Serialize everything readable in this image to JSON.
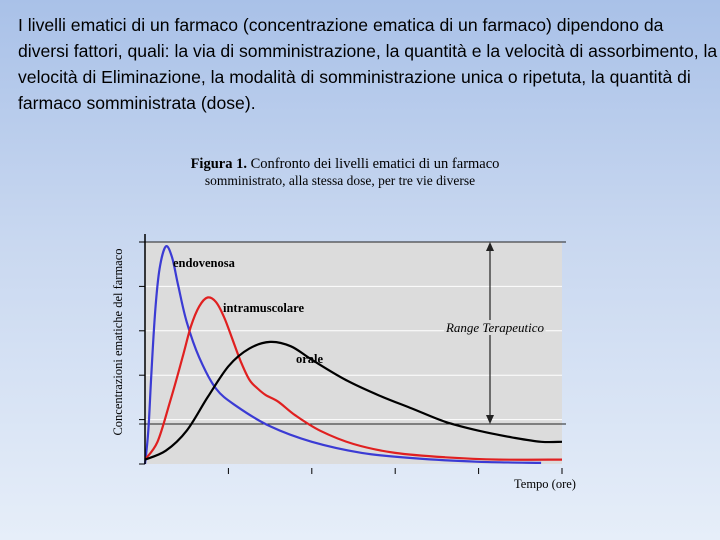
{
  "slide": {
    "intro_text": "I livelli ematici di un farmaco (concentrazione ematica di un farmaco) dipendono da diversi fattori, quali: la via di somministrazione, la quantità e la velocità di assorbimento, la velocità di Eliminazione, la modalità di somministrazione unica o ripetuta, la quantità di farmaco somministrata (dose)."
  },
  "chart_data": {
    "type": "line",
    "title_bold": "Figura 1.",
    "title_rest": " Confronto dei livelli ematici di un farmaco",
    "subtitle": "somministrato, alla stessa dose, per tre vie diverse",
    "xlabel": "Tempo (ore)",
    "ylabel": "Concentrazioni ematiche del farmaco",
    "xlim": [
      0,
      100
    ],
    "ylim": [
      0,
      100
    ],
    "grid": true,
    "band": {
      "label": "Range Terapeutico",
      "low": 18,
      "high": 100
    },
    "series": [
      {
        "name": "endovenosa",
        "color": "#3b3bd4",
        "x": [
          0,
          0.8,
          1.5,
          2.5,
          3.5,
          5,
          6.5,
          8,
          10,
          13,
          17,
          22,
          30,
          40,
          52,
          65,
          80,
          95
        ],
        "y": [
          0,
          15,
          40,
          70,
          88,
          98,
          93,
          80,
          64,
          48,
          34,
          26,
          17,
          10,
          5,
          2.5,
          1,
          0.5
        ]
      },
      {
        "name": "intramuscolare",
        "color": "#e02020",
        "x": [
          0,
          3,
          6,
          9,
          11,
          13,
          15,
          17,
          19,
          21,
          23,
          25,
          27,
          29,
          32,
          36,
          42,
          50,
          60,
          72,
          85,
          100
        ],
        "y": [
          2,
          10,
          28,
          48,
          62,
          71,
          75,
          73,
          66,
          56,
          46,
          38,
          34,
          31,
          28,
          22,
          15,
          9,
          5,
          3,
          2,
          2
        ]
      },
      {
        "name": "orale",
        "color": "#000000",
        "x": [
          0,
          5,
          10,
          15,
          20,
          25,
          30,
          35,
          40,
          48,
          56,
          64,
          72,
          80,
          88,
          95,
          100
        ],
        "y": [
          2,
          6,
          15,
          30,
          44,
          52,
          55,
          53,
          47,
          38,
          31,
          25,
          19,
          15,
          12,
          10,
          10
        ]
      }
    ]
  }
}
